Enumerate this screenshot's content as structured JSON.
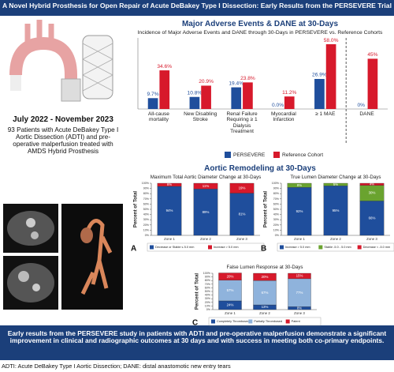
{
  "header": {
    "title": "A Novel Hybrid Prosthesis for Open Repair of Acute DeBakey Type I Dissection: Early Results from the PERSEVERE Trial"
  },
  "study": {
    "period": "July 2022 - November 2023",
    "description": "93 Patients with Acute DeBakey Type I Aortic Dissection (ADTI) and pre-operative malperfusion treated with AMDS Hybrid Prosthesis"
  },
  "sections": [
    "Major Adverse Events & DANE at 30-Days",
    "Aortic Remodeling at 30-Days"
  ],
  "conclusion": "Early results from the PERSEVERE study in patients with ADTI and pre-operative malperfusion demonstrate a significant improvement in clinical and radiographic outcomes at 30 days and with success in meeting both co-primary endpoints.",
  "footnote": "ADTI: Acute DeBakey Type I Aortic Dissection; DANE: distal anastomotic new entry tears",
  "chart_data": [
    {
      "type": "bar",
      "title": "Incidence of Major Adverse Events and DANE through 30-Days in PERSEVERE vs. Reference Cohorts",
      "categories": [
        "All-cause mortality",
        "New Disabling Stroke",
        "Renal Failure Requiring ≥ 1 Dialysis Treatment",
        "Myocardial Infarction",
        "≥ 1 MAE",
        "DANE"
      ],
      "series": [
        {
          "name": "PERSEVERE",
          "color": "#1f4e9c",
          "values": [
            9.7,
            10.8,
            19.4,
            0.0,
            26.9,
            0
          ],
          "value_labels": [
            "9.7%",
            "10.8%",
            "19.4%",
            "0.0%",
            "26.9%",
            "0%"
          ]
        },
        {
          "name": "Reference Cohort",
          "color": "#d7192b",
          "values": [
            34.6,
            20.9,
            23.8,
            11.2,
            58.0,
            45
          ],
          "value_labels": [
            "34.6%",
            "20.9%",
            "23.8%",
            "11.2%",
            "58.0%",
            "45%"
          ]
        }
      ]
    },
    {
      "type": "stacked_bar",
      "panel": "A",
      "title": "Maximum Total Aortic Diameter Change at 30-Days",
      "ylabel": "Percent of Total",
      "categories": [
        "Zone 1",
        "Zone 2",
        "Zone 3"
      ],
      "series": [
        {
          "name": "Decrease or Stable ≤ 5.0 mm",
          "color": "#1f4e9c",
          "values": [
            94,
            89,
            81
          ],
          "value_labels": [
            "94%",
            "89%",
            "81%"
          ]
        },
        {
          "name": "Increase > 5.0 mm",
          "color": "#d7192b",
          "values": [
            6,
            11,
            19
          ],
          "value_labels": [
            "6%",
            "11%",
            "19%"
          ]
        }
      ],
      "ylim": [
        0,
        100
      ],
      "yticks": [
        {
          "value": 0,
          "label": "0%"
        },
        {
          "value": 10,
          "label": "10%"
        },
        {
          "value": 20,
          "label": "20%"
        },
        {
          "value": 30,
          "label": "30%"
        },
        {
          "value": 40,
          "label": "40%"
        },
        {
          "value": 50,
          "label": "50%"
        },
        {
          "value": 60,
          "label": "60%"
        },
        {
          "value": 70,
          "label": "70%"
        },
        {
          "value": 80,
          "label": "80%"
        },
        {
          "value": 90,
          "label": "90%"
        },
        {
          "value": 100,
          "label": "100%"
        }
      ]
    },
    {
      "type": "stacked_bar",
      "panel": "B",
      "title": "True Lumen Diameter Change at 30-Days",
      "ylabel": "Percent of Total",
      "categories": [
        "Zone 1",
        "Zone 2",
        "Zone 3"
      ],
      "series": [
        {
          "name": "Increase > 5.0 mm",
          "color": "#1f4e9c",
          "values": [
            92,
            95,
            66
          ],
          "value_labels": [
            "92%",
            "95%",
            "66%"
          ]
        },
        {
          "name": "Stable -5.0 - 5.0 mm",
          "color": "#6aa32f",
          "values": [
            8,
            5,
            30
          ],
          "value_labels": [
            "8%",
            "5%",
            "30%"
          ]
        },
        {
          "name": "Decrease < -5.0 mm",
          "color": "#d7192b",
          "values": [
            0,
            0,
            4
          ],
          "value_labels": [
            null,
            null,
            "4%"
          ]
        }
      ],
      "ylim": [
        0,
        100
      ],
      "yticks": [
        {
          "value": 0,
          "label": "0%"
        },
        {
          "value": 10,
          "label": "10%"
        },
        {
          "value": 20,
          "label": "20%"
        },
        {
          "value": 30,
          "label": "30%"
        },
        {
          "value": 40,
          "label": "40%"
        },
        {
          "value": 50,
          "label": "50%"
        },
        {
          "value": 60,
          "label": "60%"
        },
        {
          "value": 70,
          "label": "70%"
        },
        {
          "value": 80,
          "label": "80%"
        },
        {
          "value": 90,
          "label": "90%"
        },
        {
          "value": 100,
          "label": "100%"
        }
      ]
    },
    {
      "type": "stacked_bar",
      "panel": "C",
      "title": "False Lumen Response at 30-Days",
      "ylabel": "Percent of Total",
      "categories": [
        "Zone 1",
        "Zone 2",
        "Zone 3"
      ],
      "series": [
        {
          "name": "Completely Thrombosed",
          "color": "#1f4e9c",
          "values": [
            24,
            13,
            8
          ],
          "value_labels": [
            "24%",
            "13%",
            "8%"
          ]
        },
        {
          "name": "Partially Thrombosed",
          "color": "#8fb3dc",
          "values": [
            57,
            67,
            77
          ],
          "value_labels": [
            "57%",
            "67%",
            "77%"
          ]
        },
        {
          "name": "Patent",
          "color": "#d7192b",
          "values": [
            20,
            20,
            15
          ],
          "value_labels": [
            "20%",
            "20%",
            "15%"
          ]
        }
      ],
      "ylim": [
        0,
        100
      ],
      "yticks": [
        {
          "value": 0,
          "label": "0%"
        },
        {
          "value": 10,
          "label": "10%"
        },
        {
          "value": 20,
          "label": "20%"
        },
        {
          "value": 30,
          "label": "30%"
        },
        {
          "value": 40,
          "label": "40%"
        },
        {
          "value": 50,
          "label": "50%"
        },
        {
          "value": 60,
          "label": "60%"
        },
        {
          "value": 70,
          "label": "70%"
        },
        {
          "value": 80,
          "label": "80%"
        },
        {
          "value": 90,
          "label": "90%"
        },
        {
          "value": 100,
          "label": "100%"
        }
      ]
    }
  ]
}
